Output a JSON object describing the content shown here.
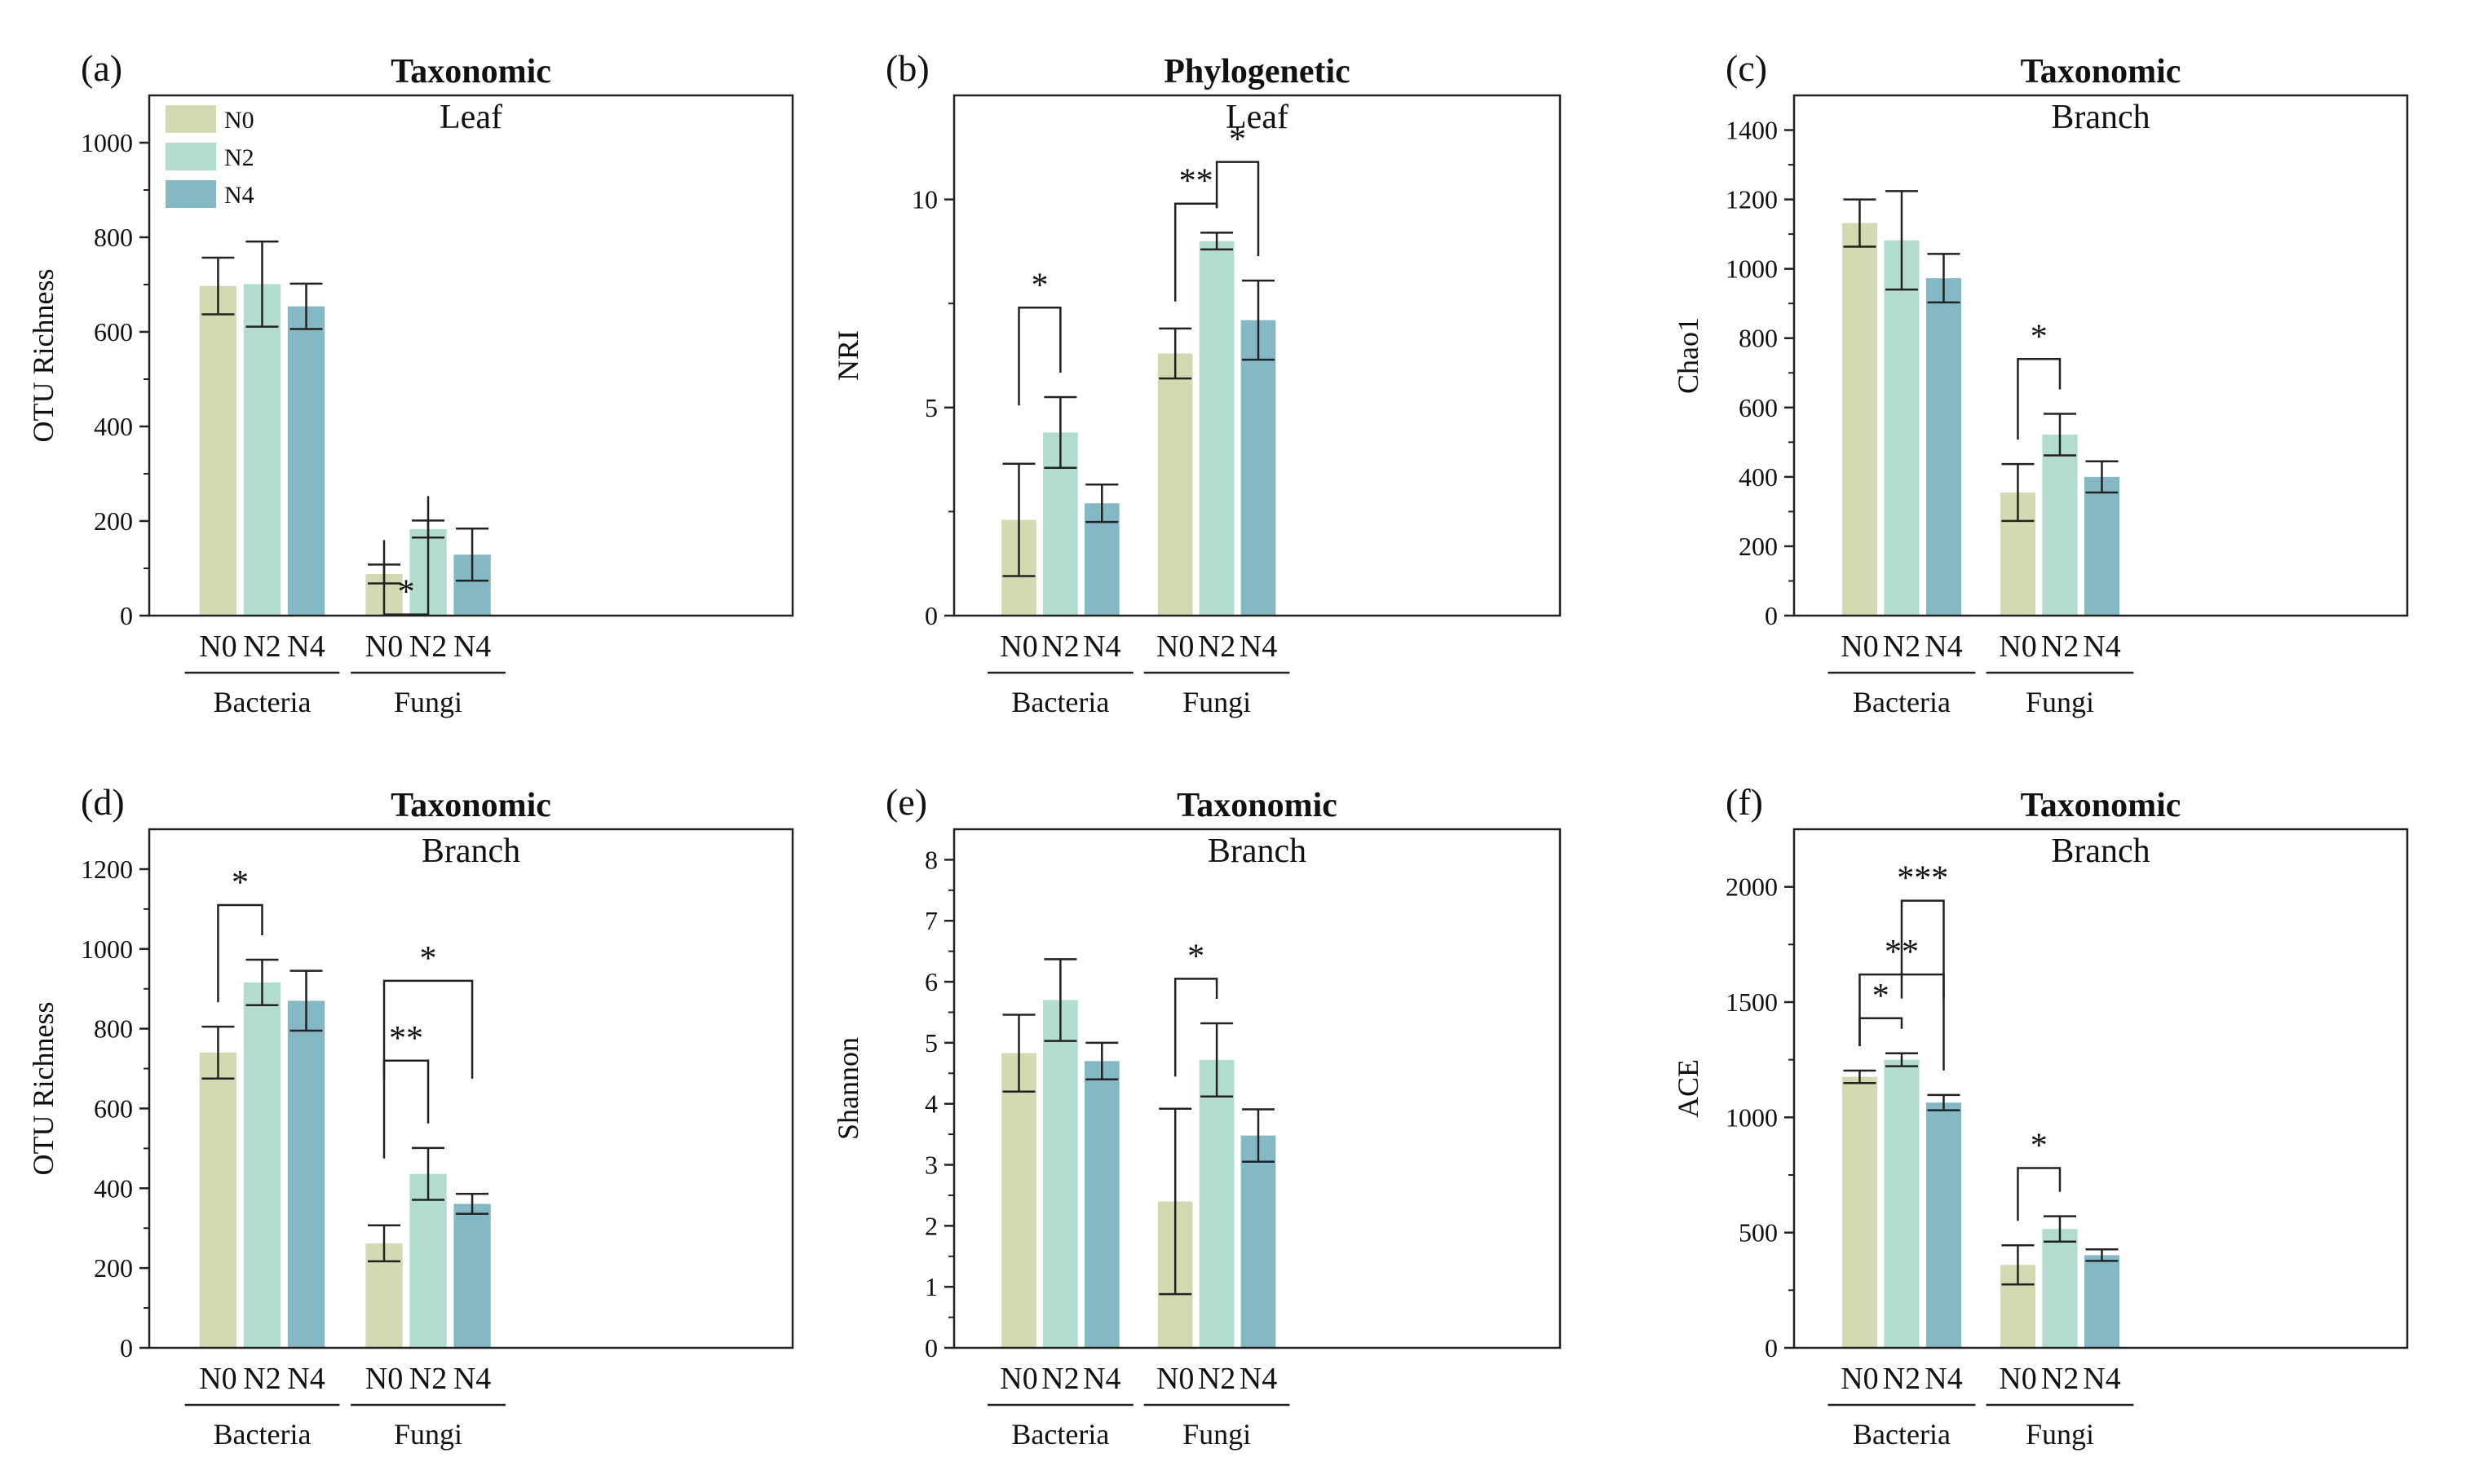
{
  "colors": {
    "N0": "#d3d9b1",
    "N2": "#b1dccf",
    "N4": "#85b8c5"
  },
  "legend": [
    "N0",
    "N2",
    "N4"
  ],
  "chart_data": [
    {
      "panel": "(a)",
      "type": "bar",
      "title": "Taxonomic",
      "subtitle": "Leaf",
      "ylabel": "OTU Richness",
      "ylim": [
        0,
        1100
      ],
      "yticks": [
        0,
        200,
        400,
        600,
        800,
        1000
      ],
      "groups": [
        "Bacteria",
        "Fungi"
      ],
      "categories": [
        "N0",
        "N2",
        "N4"
      ],
      "values": [
        [
          697,
          701,
          654
        ],
        [
          88,
          183,
          129
        ]
      ],
      "errors": [
        [
          60,
          90,
          48
        ],
        [
          20,
          18,
          55
        ]
      ],
      "legend": true,
      "sig": [
        {
          "g": 1,
          "from": 0,
          "to": 1,
          "label": "*",
          "level": 2.3
        }
      ]
    },
    {
      "panel": "(b)",
      "type": "bar",
      "title": "Phylogenetic",
      "subtitle": "Leaf",
      "ylabel": "NRI",
      "ylim": [
        0,
        12.5
      ],
      "yticks": [
        0,
        5,
        10
      ],
      "groups": [
        "Bacteria",
        "Fungi"
      ],
      "categories": [
        "N0",
        "N2",
        "N4"
      ],
      "values": [
        [
          2.3,
          4.4,
          2.7
        ],
        [
          6.3,
          9.0,
          7.1
        ]
      ],
      "errors": [
        [
          1.35,
          0.85,
          0.45
        ],
        [
          0.6,
          0.2,
          0.95
        ]
      ],
      "sig": [
        {
          "g": 0,
          "from": 0,
          "to": 1,
          "label": "*",
          "level": 7.4
        },
        {
          "g": 1,
          "from": 0,
          "to": 1,
          "label": "**",
          "level": 9.9
        },
        {
          "g": 1,
          "from": 1,
          "to": 2,
          "label": "*",
          "level": 10.9
        }
      ]
    },
    {
      "panel": "(c)",
      "type": "bar",
      "title": "Taxonomic",
      "subtitle": "Branch",
      "ylabel": "Chao1",
      "ylim": [
        0,
        1500
      ],
      "yticks": [
        0,
        200,
        400,
        600,
        800,
        1000,
        1200,
        1400
      ],
      "groups": [
        "Bacteria",
        "Fungi"
      ],
      "categories": [
        "N0",
        "N2",
        "N4"
      ],
      "values": [
        [
          1132,
          1082,
          973
        ],
        [
          355,
          522,
          400
        ]
      ],
      "errors": [
        [
          68,
          142,
          70
        ],
        [
          82,
          60,
          45
        ]
      ],
      "sig": [
        {
          "g": 1,
          "from": 0,
          "to": 1,
          "label": "*",
          "level": 740
        }
      ]
    },
    {
      "panel": "(d)",
      "type": "bar",
      "title": "Taxonomic",
      "subtitle": "Branch",
      "ylabel": "OTU Richness",
      "ylim": [
        0,
        1300
      ],
      "yticks": [
        0,
        200,
        400,
        600,
        800,
        1000,
        1200
      ],
      "groups": [
        "Bacteria",
        "Fungi"
      ],
      "categories": [
        "N0",
        "N2",
        "N4"
      ],
      "values": [
        [
          740,
          916,
          870
        ],
        [
          262,
          436,
          361
        ]
      ],
      "errors": [
        [
          65,
          57,
          75
        ],
        [
          45,
          65,
          25
        ]
      ],
      "sig": [
        {
          "g": 0,
          "from": 0,
          "to": 1,
          "label": "*",
          "level": 1110
        },
        {
          "g": 1,
          "from": 0,
          "to": 1,
          "label": "**",
          "level": 720
        },
        {
          "g": 1,
          "from": 0,
          "to": 2,
          "label": "*",
          "level": 920
        }
      ]
    },
    {
      "panel": "(e)",
      "type": "bar",
      "title": "Taxonomic",
      "subtitle": "Branch",
      "ylabel": "Shannon",
      "ylim": [
        0,
        8.5
      ],
      "yticks": [
        0,
        1,
        2,
        3,
        4,
        5,
        6,
        7,
        8
      ],
      "groups": [
        "Bacteria",
        "Fungi"
      ],
      "categories": [
        "N0",
        "N2",
        "N4"
      ],
      "values": [
        [
          4.83,
          5.7,
          4.7
        ],
        [
          2.4,
          4.72,
          3.48
        ]
      ],
      "errors": [
        [
          0.63,
          0.67,
          0.3
        ],
        [
          1.52,
          0.6,
          0.43
        ]
      ],
      "sig": [
        {
          "g": 1,
          "from": 0,
          "to": 1,
          "label": "*",
          "level": 6.05
        }
      ]
    },
    {
      "panel": "(f)",
      "type": "bar",
      "title": "Taxonomic",
      "subtitle": "Branch",
      "ylabel": "ACE",
      "ylim": [
        0,
        2250
      ],
      "yticks": [
        0,
        500,
        1000,
        1500,
        2000
      ],
      "groups": [
        "Bacteria",
        "Fungi"
      ],
      "categories": [
        "N0",
        "N2",
        "N4"
      ],
      "values": [
        [
          1176,
          1250,
          1064
        ],
        [
          360,
          516,
          402
        ]
      ],
      "errors": [
        [
          27,
          28,
          33
        ],
        [
          85,
          55,
          25
        ]
      ],
      "sig": [
        {
          "g": 0,
          "from": 0,
          "to": 1,
          "label": "*",
          "level": 1430
        },
        {
          "g": 0,
          "from": 0,
          "to": 2,
          "label": "**",
          "level": 1620
        },
        {
          "g": 0,
          "from": 1,
          "to": 2,
          "label": "***",
          "level": 1940
        },
        {
          "g": 1,
          "from": 0,
          "to": 1,
          "label": "*",
          "level": 780
        }
      ]
    }
  ]
}
